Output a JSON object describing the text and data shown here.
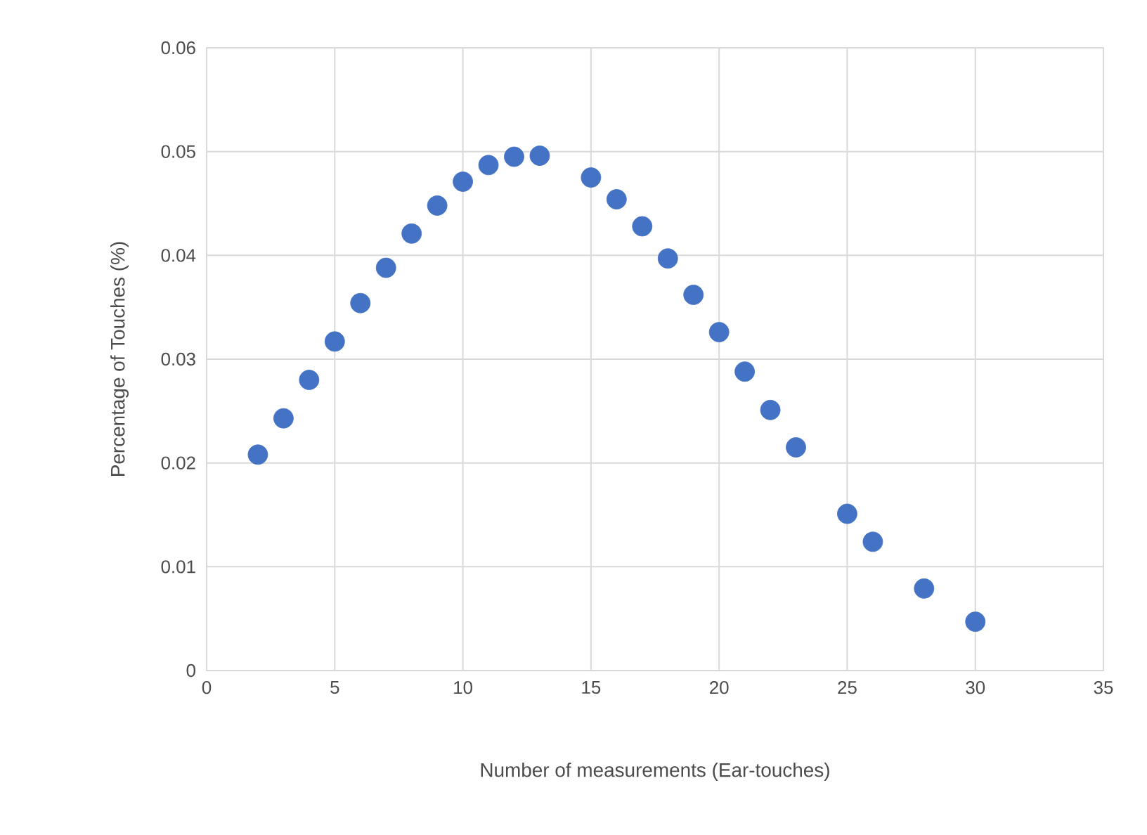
{
  "chart_data": {
    "type": "scatter",
    "xlabel": "Number of measurements (Ear-touches)",
    "ylabel": "Percentage of Touches (%)",
    "x": [
      2,
      3,
      4,
      5,
      6,
      7,
      8,
      9,
      10,
      11,
      12,
      13,
      15,
      16,
      17,
      18,
      19,
      20,
      21,
      22,
      23,
      25,
      26,
      28,
      30
    ],
    "series": [
      {
        "color": "#4472c4",
        "values": [
          0.0208,
          0.0243,
          0.028,
          0.0317,
          0.0354,
          0.0388,
          0.0421,
          0.0448,
          0.0471,
          0.0487,
          0.0495,
          0.0496,
          0.0475,
          0.0454,
          0.0428,
          0.0397,
          0.0362,
          0.0326,
          0.0288,
          0.0251,
          0.0215,
          0.0151,
          0.0124,
          0.0079,
          0.0047
        ]
      }
    ],
    "xlim": [
      0,
      35
    ],
    "xticks": [
      0,
      5,
      10,
      15,
      20,
      25,
      30,
      35
    ],
    "ylim": [
      0,
      0.06
    ],
    "yticks": [
      0,
      0.01,
      0.02,
      0.03,
      0.04,
      0.05,
      0.06
    ],
    "grid": true,
    "marker": "circle"
  }
}
